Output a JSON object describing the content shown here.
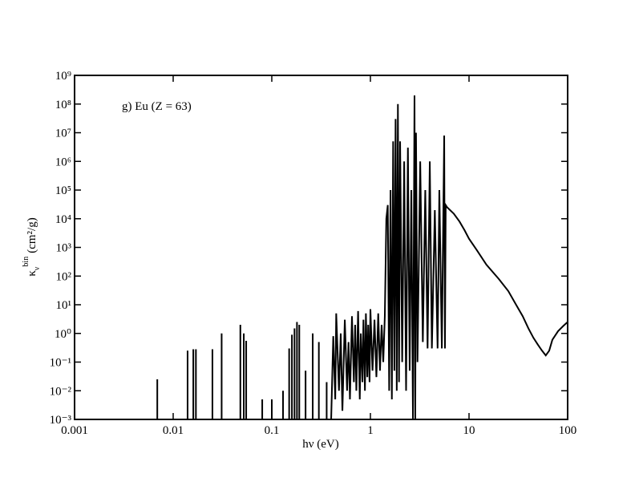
{
  "chart_data": {
    "type": "line",
    "annotation": "g) Eu (Z = 63)",
    "xlabel": "hν (eV)",
    "ylabel": {
      "symbol": "κ",
      "sub": "ν",
      "sup": "bin",
      "units": "(cm²/g)"
    },
    "xlog": true,
    "ylog": true,
    "xlim": [
      0.001,
      100
    ],
    "ylim": [
      0.001,
      1000000000
    ],
    "xticks": [
      0.001,
      0.01,
      0.1,
      1,
      10,
      100
    ],
    "yticks": [
      {
        "value": 1000000000,
        "label": "10⁹"
      },
      {
        "value": 100000000,
        "label": "10⁸"
      },
      {
        "value": 10000000,
        "label": "10⁷"
      },
      {
        "value": 1000000,
        "label": "10⁶"
      },
      {
        "value": 100000,
        "label": "10⁵"
      },
      {
        "value": 10000,
        "label": "10⁴"
      },
      {
        "value": 1000,
        "label": "10³"
      },
      {
        "value": 100,
        "label": "10²"
      },
      {
        "value": 10,
        "label": "10¹"
      },
      {
        "value": 1,
        "label": "10⁰"
      },
      {
        "value": 0.1,
        "label": "10⁻¹"
      },
      {
        "value": 0.01,
        "label": "10⁻²"
      },
      {
        "value": 0.001,
        "label": "10⁻³"
      }
    ],
    "color": "#000000",
    "x": [
      0.0069,
      0.0069,
      0.0069,
      0.014,
      0.014,
      0.014,
      0.016,
      0.016,
      0.016,
      0.017,
      0.017,
      0.017,
      0.025,
      0.025,
      0.025,
      0.031,
      0.031,
      0.031,
      0.048,
      0.048,
      0.048,
      0.052,
      0.052,
      0.052,
      0.055,
      0.055,
      0.055,
      0.08,
      0.08,
      0.08,
      0.1,
      0.1,
      0.1,
      0.13,
      0.13,
      0.13,
      0.15,
      0.15,
      0.15,
      0.16,
      0.16,
      0.16,
      0.17,
      0.17,
      0.17,
      0.18,
      0.18,
      0.18,
      0.19,
      0.19,
      0.19,
      0.22,
      0.22,
      0.22,
      0.26,
      0.26,
      0.26,
      0.3,
      0.3,
      0.3,
      0.36,
      0.36,
      0.36,
      0.4,
      0.42,
      0.44,
      0.45,
      0.48,
      0.5,
      0.52,
      0.55,
      0.58,
      0.6,
      0.62,
      0.65,
      0.68,
      0.7,
      0.72,
      0.75,
      0.78,
      0.8,
      0.83,
      0.85,
      0.88,
      0.9,
      0.93,
      0.95,
      0.98,
      1.0,
      1.05,
      1.1,
      1.15,
      1.2,
      1.25,
      1.3,
      1.35,
      1.4,
      1.45,
      1.5,
      1.55,
      1.6,
      1.65,
      1.7,
      1.75,
      1.8,
      1.85,
      1.9,
      1.95,
      2.0,
      2.1,
      2.2,
      2.3,
      2.4,
      2.5,
      2.6,
      2.7,
      2.8,
      2.85,
      2.9,
      3.0,
      3.2,
      3.4,
      3.6,
      3.8,
      4.0,
      4.2,
      4.5,
      4.8,
      5.0,
      5.3,
      5.6,
      5.7,
      5.8,
      6,
      7,
      8,
      9,
      10,
      12,
      15,
      20,
      25,
      30,
      35,
      40,
      45,
      50,
      55,
      60,
      65,
      70,
      80,
      90,
      100
    ],
    "values": [
      0.001,
      0.025,
      0.001,
      0.001,
      0.25,
      0.001,
      0.001,
      0.28,
      0.001,
      0.001,
      0.28,
      0.001,
      0.001,
      0.28,
      0.001,
      0.001,
      1,
      0.001,
      0.001,
      2,
      0.001,
      0.001,
      1,
      0.001,
      0.001,
      0.55,
      0.001,
      0.001,
      0.005,
      0.001,
      0.001,
      0.005,
      0.001,
      0.001,
      0.01,
      0.001,
      0.001,
      0.3,
      0.001,
      0.001,
      0.9,
      0.001,
      0.001,
      1.5,
      0.001,
      0.001,
      2.5,
      0.001,
      0.001,
      2,
      0.001,
      0.001,
      0.05,
      0.001,
      0.001,
      1,
      0.001,
      0.001,
      0.5,
      0.001,
      0.001,
      0.02,
      0.001,
      0.001,
      0.8,
      0.005,
      5,
      0.01,
      1,
      0.002,
      3,
      0.01,
      0.5,
      0.005,
      4,
      0.02,
      2,
      0.01,
      6,
      0.005,
      1,
      0.02,
      3,
      0.01,
      5,
      0.03,
      2,
      0.02,
      7,
      0.05,
      3,
      0.03,
      5,
      0.05,
      2,
      0.1,
      4,
      10000,
      30000,
      0.01,
      100000,
      0.005,
      5000000,
      0.05,
      30000000,
      0.01,
      100000000,
      0.02,
      5000000,
      0.1,
      1000000,
      0.01,
      3000000,
      0.05,
      100000,
      0.001,
      200000000,
      0.001,
      10000000,
      0.1,
      1000000,
      0.5,
      100000,
      0.3,
      1000000,
      0.3,
      20000,
      0.3,
      100000,
      0.3,
      8000000,
      0.3,
      30000,
      25000,
      15000,
      8000,
      4000,
      2000,
      800,
      250,
      80,
      30,
      10,
      4,
      1.5,
      0.7,
      0.4,
      0.25,
      0.17,
      0.25,
      0.6,
      1.2,
      1.8,
      2.5
    ]
  }
}
